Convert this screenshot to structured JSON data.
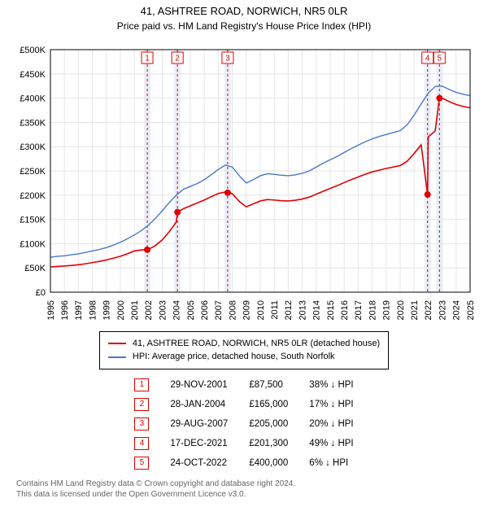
{
  "title": "41, ASHTREE ROAD, NORWICH, NR5 0LR",
  "subtitle": "Price paid vs. HM Land Registry's House Price Index (HPI)",
  "chart": {
    "type": "line",
    "background_color": "#ffffff",
    "plot_border_color": "#000000",
    "grid_color": "#e6e6e6",
    "event_band_color": "#e8f0fa",
    "event_line_color": "#e00000",
    "event_line_dash": "3,3",
    "ylim": [
      0,
      500000
    ],
    "ytick_step": 50000,
    "y_prefix": "£",
    "y_suffix": "K",
    "x_years": [
      1995,
      1996,
      1997,
      1998,
      1999,
      2000,
      2001,
      2002,
      2003,
      2004,
      2005,
      2006,
      2007,
      2008,
      2009,
      2010,
      2011,
      2012,
      2013,
      2014,
      2015,
      2016,
      2017,
      2018,
      2019,
      2020,
      2021,
      2022,
      2023,
      2024,
      2025
    ],
    "series": [
      {
        "name": "hpi",
        "label": "HPI: Average price, detached house, South Norfolk",
        "color": "#4a78c8",
        "width": 1.4,
        "data": [
          [
            1995.0,
            72000
          ],
          [
            1995.5,
            74000
          ],
          [
            1996.0,
            75000
          ],
          [
            1996.5,
            77000
          ],
          [
            1997.0,
            79000
          ],
          [
            1997.5,
            82000
          ],
          [
            1998.0,
            85000
          ],
          [
            1998.5,
            88000
          ],
          [
            1999.0,
            92000
          ],
          [
            1999.5,
            97000
          ],
          [
            2000.0,
            103000
          ],
          [
            2000.5,
            110000
          ],
          [
            2001.0,
            118000
          ],
          [
            2001.5,
            127000
          ],
          [
            2002.0,
            138000
          ],
          [
            2002.5,
            152000
          ],
          [
            2003.0,
            168000
          ],
          [
            2003.5,
            185000
          ],
          [
            2004.0,
            200000
          ],
          [
            2004.5,
            212000
          ],
          [
            2005.0,
            218000
          ],
          [
            2005.5,
            224000
          ],
          [
            2006.0,
            232000
          ],
          [
            2006.5,
            242000
          ],
          [
            2007.0,
            253000
          ],
          [
            2007.5,
            262000
          ],
          [
            2008.0,
            258000
          ],
          [
            2008.5,
            240000
          ],
          [
            2009.0,
            225000
          ],
          [
            2009.5,
            232000
          ],
          [
            2010.0,
            240000
          ],
          [
            2010.5,
            244000
          ],
          [
            2011.0,
            243000
          ],
          [
            2011.5,
            241000
          ],
          [
            2012.0,
            240000
          ],
          [
            2012.5,
            242000
          ],
          [
            2013.0,
            245000
          ],
          [
            2013.5,
            250000
          ],
          [
            2014.0,
            258000
          ],
          [
            2014.5,
            266000
          ],
          [
            2015.0,
            273000
          ],
          [
            2015.5,
            280000
          ],
          [
            2016.0,
            288000
          ],
          [
            2016.5,
            296000
          ],
          [
            2017.0,
            303000
          ],
          [
            2017.5,
            310000
          ],
          [
            2018.0,
            316000
          ],
          [
            2018.5,
            321000
          ],
          [
            2019.0,
            325000
          ],
          [
            2019.5,
            329000
          ],
          [
            2020.0,
            333000
          ],
          [
            2020.5,
            345000
          ],
          [
            2021.0,
            365000
          ],
          [
            2021.5,
            388000
          ],
          [
            2022.0,
            410000
          ],
          [
            2022.5,
            424000
          ],
          [
            2023.0,
            425000
          ],
          [
            2023.5,
            418000
          ],
          [
            2024.0,
            412000
          ],
          [
            2024.5,
            408000
          ],
          [
            2025.0,
            405000
          ]
        ]
      },
      {
        "name": "price_paid",
        "label": "41, ASHTREE ROAD, NORWICH, NR5 0LR (detached house)",
        "color": "#e00000",
        "width": 1.6,
        "data": [
          [
            1995.0,
            52000
          ],
          [
            1995.5,
            53000
          ],
          [
            1996.0,
            54000
          ],
          [
            1996.5,
            55000
          ],
          [
            1997.0,
            56500
          ],
          [
            1997.5,
            58500
          ],
          [
            1998.0,
            61000
          ],
          [
            1998.5,
            63500
          ],
          [
            1999.0,
            66500
          ],
          [
            1999.5,
            70000
          ],
          [
            2000.0,
            74000
          ],
          [
            2000.5,
            79000
          ],
          [
            2001.0,
            85000
          ],
          [
            2001.5,
            87000
          ],
          [
            2001.92,
            87500
          ],
          [
            2002.0,
            88000
          ],
          [
            2002.5,
            96000
          ],
          [
            2003.0,
            108000
          ],
          [
            2003.5,
            125000
          ],
          [
            2004.0,
            145000
          ],
          [
            2004.08,
            165000
          ],
          [
            2004.5,
            172000
          ],
          [
            2005.0,
            178000
          ],
          [
            2005.5,
            184000
          ],
          [
            2006.0,
            190000
          ],
          [
            2006.5,
            197000
          ],
          [
            2007.0,
            203500
          ],
          [
            2007.5,
            206500
          ],
          [
            2007.67,
            205000
          ],
          [
            2008.0,
            203000
          ],
          [
            2008.5,
            187000
          ],
          [
            2009.0,
            176000
          ],
          [
            2009.5,
            182000
          ],
          [
            2010.0,
            188000
          ],
          [
            2010.5,
            191000
          ],
          [
            2011.0,
            190000
          ],
          [
            2011.5,
            188500
          ],
          [
            2012.0,
            188000
          ],
          [
            2012.5,
            189500
          ],
          [
            2013.0,
            192000
          ],
          [
            2013.5,
            196000
          ],
          [
            2014.0,
            202000
          ],
          [
            2014.5,
            208000
          ],
          [
            2015.0,
            214000
          ],
          [
            2015.5,
            219500
          ],
          [
            2016.0,
            226000
          ],
          [
            2016.5,
            232000
          ],
          [
            2017.0,
            237500
          ],
          [
            2017.5,
            243000
          ],
          [
            2018.0,
            248000
          ],
          [
            2018.5,
            251500
          ],
          [
            2019.0,
            255000
          ],
          [
            2019.5,
            258000
          ],
          [
            2020.0,
            261000
          ],
          [
            2020.5,
            270000
          ],
          [
            2021.0,
            286000
          ],
          [
            2021.5,
            304000
          ],
          [
            2021.96,
            201300
          ],
          [
            2022.0,
            320000
          ],
          [
            2022.5,
            332000
          ],
          [
            2022.81,
            400000
          ],
          [
            2023.0,
            400000
          ],
          [
            2023.5,
            393000
          ],
          [
            2024.0,
            387000
          ],
          [
            2024.5,
            383000
          ],
          [
            2025.0,
            380000
          ]
        ]
      }
    ],
    "event_markers": [
      {
        "n": 1,
        "x": 2001.92,
        "y": 87500
      },
      {
        "n": 2,
        "x": 2004.08,
        "y": 165000
      },
      {
        "n": 3,
        "x": 2007.67,
        "y": 205000
      },
      {
        "n": 4,
        "x": 2021.96,
        "y": 201300
      },
      {
        "n": 5,
        "x": 2022.81,
        "y": 400000
      }
    ],
    "marker_radius": 4,
    "marker_box": {
      "w": 14,
      "h": 14,
      "border": "#e00000",
      "text": "#e00000",
      "fontsize": 10,
      "y": 10
    },
    "axis_fontsize": 11,
    "title_fontsize": 13,
    "x_label_rotation": -90
  },
  "legend": {
    "items": [
      {
        "color": "#e00000",
        "label": "41, ASHTREE ROAD, NORWICH, NR5 0LR (detached house)"
      },
      {
        "color": "#4a78c8",
        "label": "HPI: Average price, detached house, South Norfolk"
      }
    ]
  },
  "events_table": {
    "rows": [
      {
        "n": "1",
        "date": "29-NOV-2001",
        "price": "£87,500",
        "delta": "38% ↓ HPI"
      },
      {
        "n": "2",
        "date": "28-JAN-2004",
        "price": "£165,000",
        "delta": "17% ↓ HPI"
      },
      {
        "n": "3",
        "date": "29-AUG-2007",
        "price": "£205,000",
        "delta": "20% ↓ HPI"
      },
      {
        "n": "4",
        "date": "17-DEC-2021",
        "price": "£201,300",
        "delta": "49% ↓ HPI"
      },
      {
        "n": "5",
        "date": "24-OCT-2022",
        "price": "£400,000",
        "delta": "6% ↓ HPI"
      }
    ]
  },
  "footer_line1": "Contains HM Land Registry data © Crown copyright and database right 2024.",
  "footer_line2": "This data is licensed under the Open Government Licence v3.0."
}
